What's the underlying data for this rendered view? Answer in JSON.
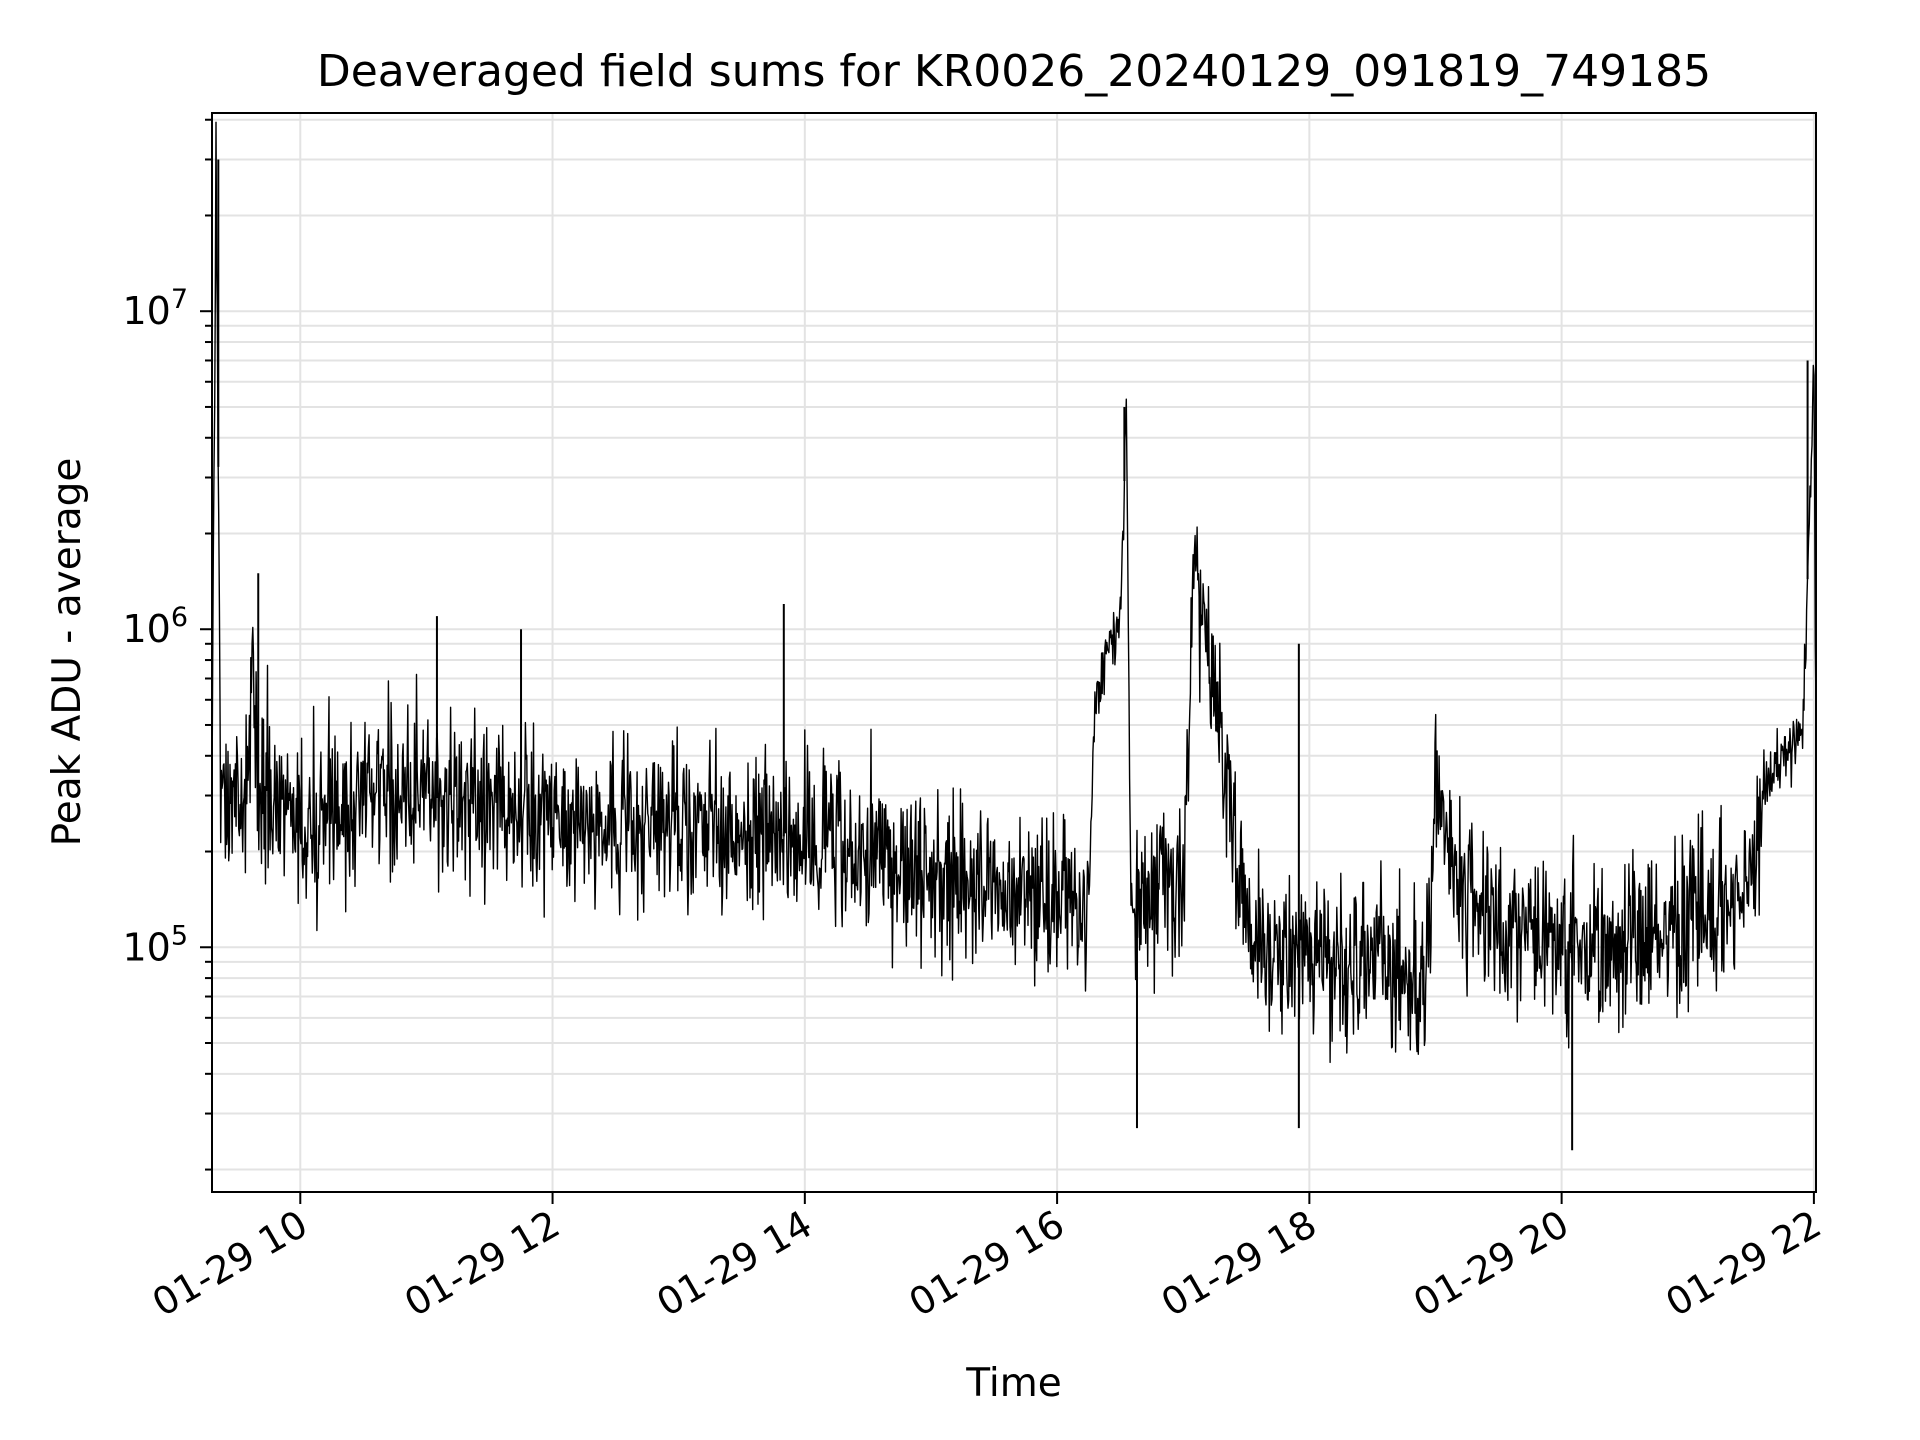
{
  "chart_data": {
    "type": "line",
    "title": "Deaveraged field sums for KR0026_20240129_091819_749185",
    "xlabel": "Time",
    "ylabel": "Peak ADU - average",
    "yscale": "log",
    "xlim": [
      "2024-01-29T09:18",
      "2024-01-29T22:01"
    ],
    "ylim": [
      17000,
      42000000
    ],
    "grid": true,
    "x_ticks": [
      {
        "value": "2024-01-29T10:00",
        "label": "01-29 10"
      },
      {
        "value": "2024-01-29T12:00",
        "label": "01-29 12"
      },
      {
        "value": "2024-01-29T14:00",
        "label": "01-29 14"
      },
      {
        "value": "2024-01-29T16:00",
        "label": "01-29 16"
      },
      {
        "value": "2024-01-29T18:00",
        "label": "01-29 18"
      },
      {
        "value": "2024-01-29T20:00",
        "label": "01-29 20"
      },
      {
        "value": "2024-01-29T22:00",
        "label": "01-29 22"
      }
    ],
    "y_ticks": [
      {
        "value": 100000,
        "base": "10",
        "exp": "5"
      },
      {
        "value": 1000000,
        "base": "10",
        "exp": "6"
      },
      {
        "value": 10000000,
        "base": "10",
        "exp": "7"
      }
    ],
    "series": [
      {
        "color": "#000000",
        "x": [
          "2024-01-29T09:18",
          "2024-01-29T09:20",
          "2024-01-29T09:22",
          "2024-01-29T09:25",
          "2024-01-29T09:30",
          "2024-01-29T09:35",
          "2024-01-29T09:38",
          "2024-01-29T09:40",
          "2024-01-29T09:45",
          "2024-01-29T09:50",
          "2024-01-29T10:00",
          "2024-01-29T10:15",
          "2024-01-29T10:30",
          "2024-01-29T11:00",
          "2024-01-29T11:30",
          "2024-01-29T12:00",
          "2024-01-29T12:30",
          "2024-01-29T13:00",
          "2024-01-29T13:30",
          "2024-01-29T14:00",
          "2024-01-29T14:30",
          "2024-01-29T15:00",
          "2024-01-29T15:30",
          "2024-01-29T16:00",
          "2024-01-29T16:15",
          "2024-01-29T16:18",
          "2024-01-29T16:25",
          "2024-01-29T16:30",
          "2024-01-29T16:33",
          "2024-01-29T16:35",
          "2024-01-29T16:40",
          "2024-01-29T16:50",
          "2024-01-29T17:00",
          "2024-01-29T17:05",
          "2024-01-29T17:30",
          "2024-01-29T18:00",
          "2024-01-29T18:30",
          "2024-01-29T18:55",
          "2024-01-29T19:00",
          "2024-01-29T19:05",
          "2024-01-29T19:15",
          "2024-01-29T19:30",
          "2024-01-29T20:00",
          "2024-01-29T20:30",
          "2024-01-29T21:00",
          "2024-01-29T21:30",
          "2024-01-29T21:35",
          "2024-01-29T21:40",
          "2024-01-29T21:50",
          "2024-01-29T21:55",
          "2024-01-29T22:00",
          "2024-01-29T22:01"
        ],
        "y": [
          400000,
          30000000,
          350000,
          300000,
          320000,
          310000,
          700000,
          300000,
          280000,
          260000,
          240000,
          260000,
          290000,
          300000,
          270000,
          260000,
          250000,
          240000,
          230000,
          220000,
          190000,
          160000,
          150000,
          140000,
          140000,
          600000,
          900000,
          1000000,
          5000000,
          150000,
          130000,
          200000,
          150000,
          1700000,
          110000,
          90000,
          85000,
          75000,
          300000,
          250000,
          150000,
          110000,
          100000,
          110000,
          130000,
          150000,
          300000,
          350000,
          450000,
          500000,
          7000000,
          550000
        ],
        "noise_segments": [
          {
            "start": "2024-01-29T09:18",
            "end": "2024-01-29T16:15"
          },
          {
            "start": "2024-01-29T16:37",
            "end": "2024-01-29T21:35"
          }
        ],
        "annotated_spikes": [
          {
            "x": "2024-01-29T09:21",
            "y": 30000000
          },
          {
            "x": "2024-01-29T09:40",
            "y": 1500000
          },
          {
            "x": "2024-01-29T11:05",
            "y": 1100000
          },
          {
            "x": "2024-01-29T11:45",
            "y": 1000000
          },
          {
            "x": "2024-01-29T13:50",
            "y": 1200000
          },
          {
            "x": "2024-01-29T16:32",
            "y": 5000000
          },
          {
            "x": "2024-01-29T17:05",
            "y": 1700000
          },
          {
            "x": "2024-01-29T17:55",
            "y": 900000
          },
          {
            "x": "2024-01-29T21:57",
            "y": 7000000
          }
        ],
        "annotated_dips": [
          {
            "x": "2024-01-29T16:38",
            "y": 27000
          },
          {
            "x": "2024-01-29T17:55",
            "y": 27000
          },
          {
            "x": "2024-01-29T20:05",
            "y": 23000
          }
        ]
      }
    ]
  }
}
